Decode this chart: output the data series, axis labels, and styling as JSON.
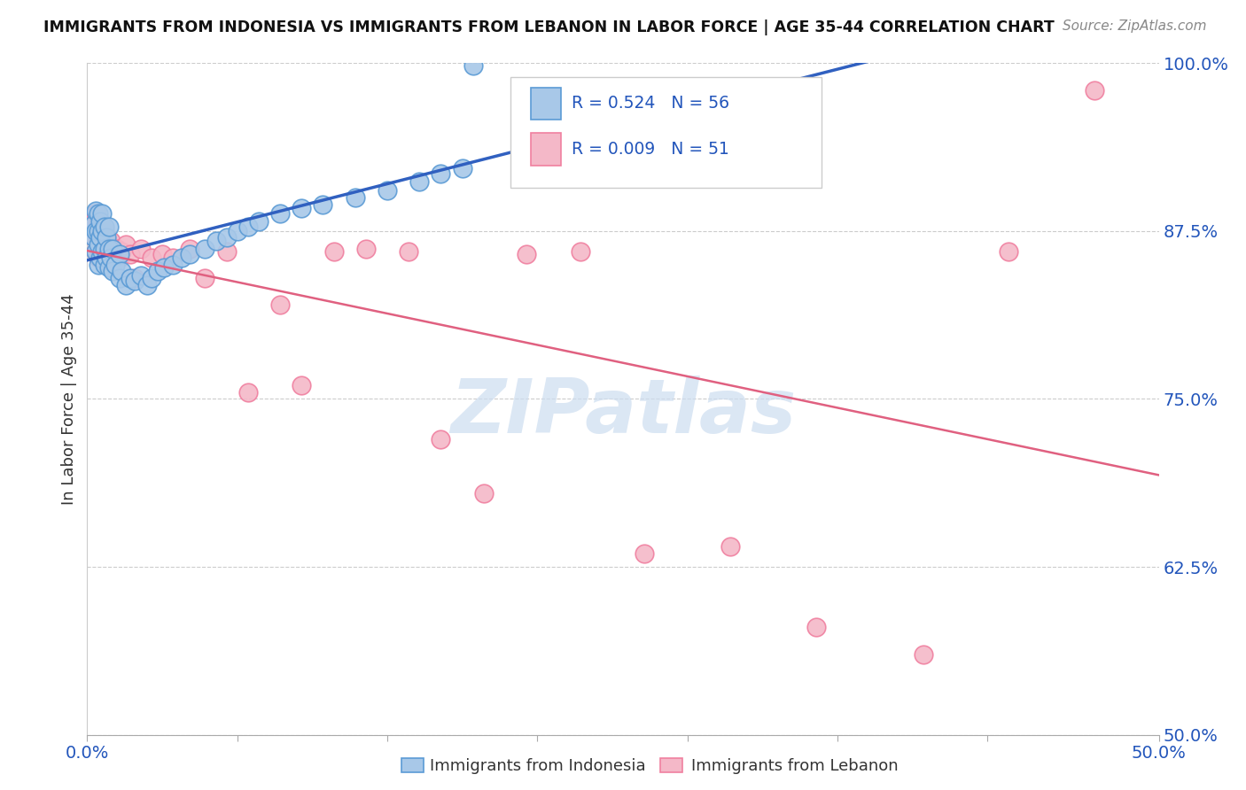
{
  "title": "IMMIGRANTS FROM INDONESIA VS IMMIGRANTS FROM LEBANON IN LABOR FORCE | AGE 35-44 CORRELATION CHART",
  "source": "Source: ZipAtlas.com",
  "ylabel": "In Labor Force | Age 35-44",
  "ytick_labels": [
    "50.0%",
    "62.5%",
    "75.0%",
    "87.5%",
    "100.0%"
  ],
  "ytick_values": [
    0.5,
    0.625,
    0.75,
    0.875,
    1.0
  ],
  "xtick_labels": [
    "0.0%",
    "",
    "",
    "",
    "",
    "",
    "",
    "50.0%"
  ],
  "xtick_values": [
    0.0,
    0.07,
    0.14,
    0.21,
    0.28,
    0.35,
    0.42,
    0.5
  ],
  "xlim": [
    0.0,
    0.5
  ],
  "ylim": [
    0.5,
    1.0
  ],
  "legend_color1": "#a8c8e8",
  "legend_color2": "#f4b8c8",
  "blue_edge": "#5b9bd5",
  "pink_edge": "#f080a0",
  "trend_blue": "#3060c0",
  "trend_pink": "#e06080",
  "watermark": "ZIPatlas",
  "watermark_color": "#ccddf0",
  "blue_r": "R = 0.524",
  "blue_n": "N = 56",
  "pink_r": "R = 0.009",
  "pink_n": "N = 51",
  "legend_label1": "Immigrants from Indonesia",
  "legend_label2": "Immigrants from Lebanon",
  "blue_x": [
    0.003,
    0.003,
    0.004,
    0.004,
    0.004,
    0.005,
    0.005,
    0.005,
    0.005,
    0.006,
    0.006,
    0.006,
    0.007,
    0.007,
    0.007,
    0.008,
    0.008,
    0.008,
    0.009,
    0.009,
    0.01,
    0.01,
    0.01,
    0.011,
    0.012,
    0.012,
    0.013,
    0.015,
    0.015,
    0.016,
    0.018,
    0.02,
    0.022,
    0.025,
    0.028,
    0.03,
    0.033,
    0.036,
    0.04,
    0.044,
    0.048,
    0.055,
    0.06,
    0.065,
    0.07,
    0.075,
    0.08,
    0.09,
    0.1,
    0.11,
    0.125,
    0.14,
    0.155,
    0.165,
    0.175,
    0.18
  ],
  "blue_y": [
    0.87,
    0.88,
    0.86,
    0.875,
    0.89,
    0.85,
    0.865,
    0.875,
    0.888,
    0.855,
    0.87,
    0.882,
    0.86,
    0.875,
    0.888,
    0.85,
    0.862,
    0.878,
    0.855,
    0.87,
    0.848,
    0.862,
    0.878,
    0.855,
    0.845,
    0.862,
    0.85,
    0.84,
    0.858,
    0.845,
    0.835,
    0.84,
    0.838,
    0.842,
    0.835,
    0.84,
    0.845,
    0.848,
    0.85,
    0.855,
    0.858,
    0.862,
    0.868,
    0.87,
    0.875,
    0.878,
    0.882,
    0.888,
    0.892,
    0.895,
    0.9,
    0.905,
    0.912,
    0.918,
    0.922,
    0.998
  ],
  "pink_x": [
    0.003,
    0.003,
    0.004,
    0.004,
    0.004,
    0.005,
    0.005,
    0.005,
    0.006,
    0.006,
    0.007,
    0.007,
    0.008,
    0.008,
    0.009,
    0.009,
    0.01,
    0.01,
    0.011,
    0.011,
    0.012,
    0.013,
    0.014,
    0.015,
    0.016,
    0.018,
    0.02,
    0.022,
    0.025,
    0.03,
    0.035,
    0.04,
    0.048,
    0.055,
    0.065,
    0.075,
    0.09,
    0.1,
    0.115,
    0.13,
    0.15,
    0.165,
    0.185,
    0.205,
    0.23,
    0.26,
    0.3,
    0.34,
    0.39,
    0.43,
    0.47
  ],
  "pink_y": [
    0.87,
    0.882,
    0.86,
    0.875,
    0.888,
    0.855,
    0.868,
    0.88,
    0.86,
    0.875,
    0.855,
    0.87,
    0.862,
    0.875,
    0.855,
    0.87,
    0.85,
    0.865,
    0.855,
    0.868,
    0.86,
    0.858,
    0.862,
    0.855,
    0.86,
    0.865,
    0.858,
    0.84,
    0.862,
    0.855,
    0.858,
    0.855,
    0.862,
    0.84,
    0.86,
    0.755,
    0.82,
    0.76,
    0.86,
    0.862,
    0.86,
    0.72,
    0.68,
    0.858,
    0.86,
    0.635,
    0.64,
    0.58,
    0.56,
    0.86,
    0.98
  ]
}
